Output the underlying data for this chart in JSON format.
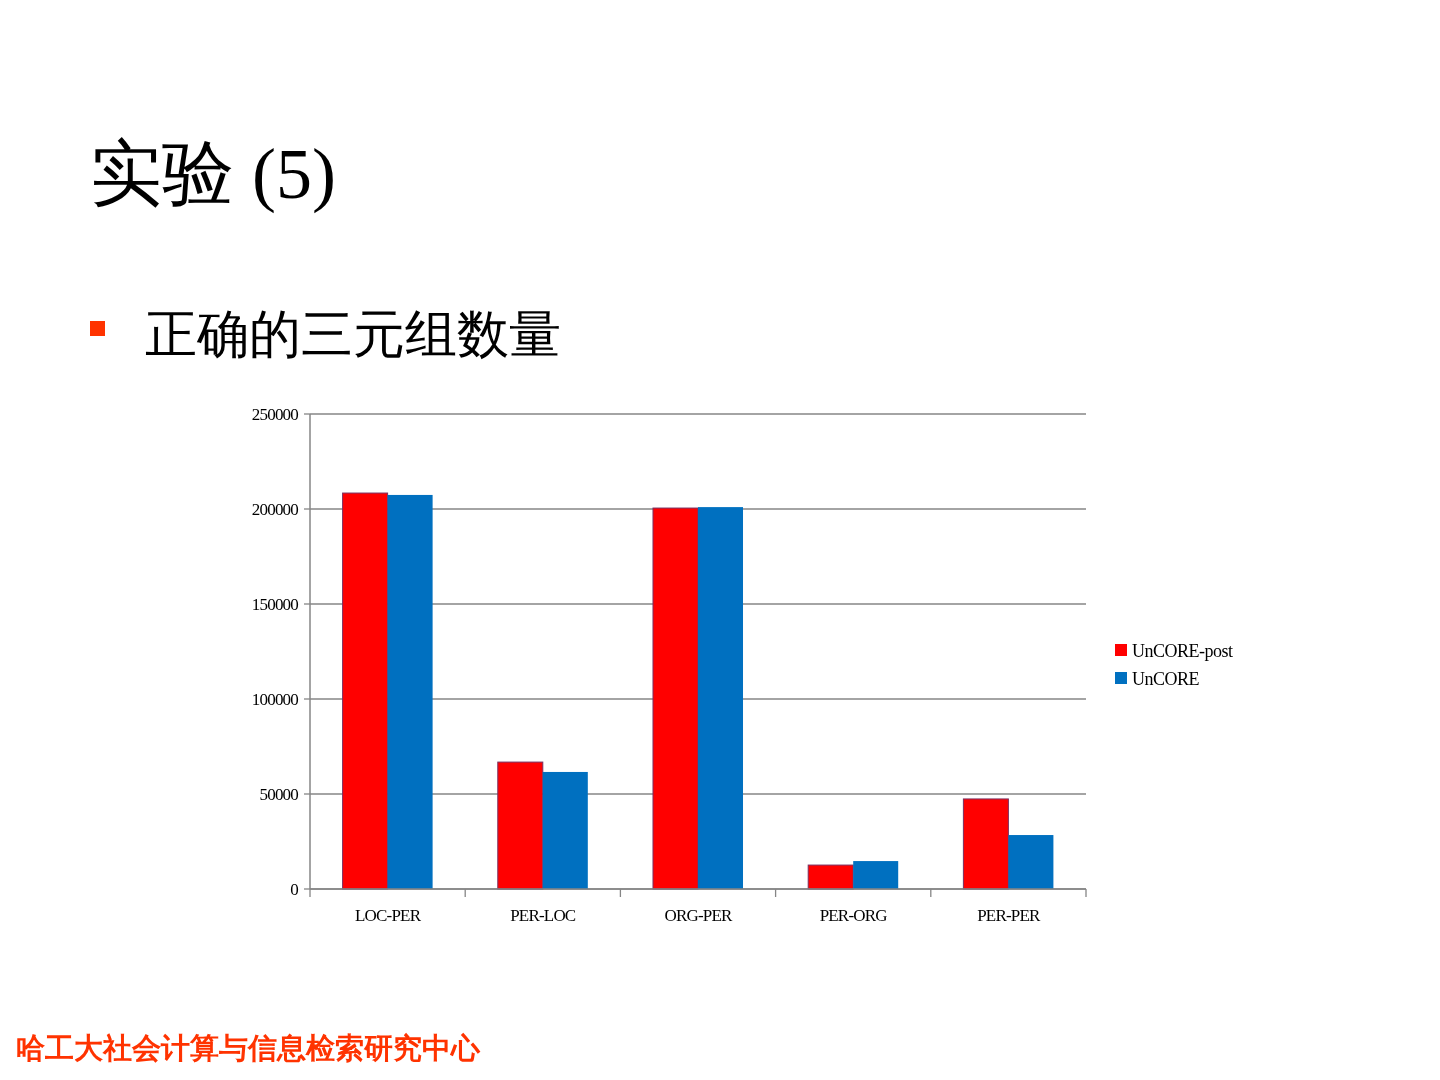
{
  "chart_data": {
    "type": "bar",
    "title": "实验 (5)",
    "subtitle": "正确的三元组数量",
    "categories": [
      "LOC-PER",
      "PER-LOC",
      "ORG-PER",
      "PER-ORG",
      "PER-PER"
    ],
    "series": [
      {
        "name": "UnCORE-post",
        "color": "#ff0000",
        "values": [
          208400,
          66800,
          200500,
          12600,
          47400
        ]
      },
      {
        "name": "UnCORE",
        "color": "#0070c0",
        "values": [
          207400,
          61600,
          201000,
          14700,
          28400
        ]
      }
    ],
    "ylim": [
      0,
      250000
    ],
    "yticks": [
      0,
      50000,
      100000,
      150000,
      200000,
      250000
    ],
    "grid": "y",
    "legend": "right",
    "annotations": [
      "哈工大社会计算与信息检索研究中心"
    ]
  }
}
